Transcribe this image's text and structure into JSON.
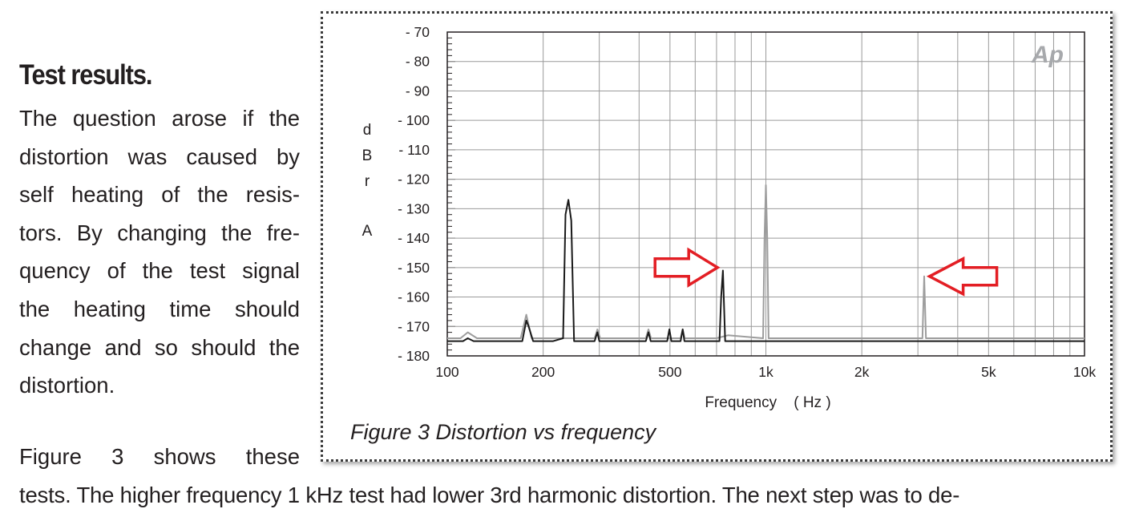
{
  "article": {
    "heading": "Test results.",
    "column_lines": [
      "The question arose if the",
      "distortion was caused by",
      "self heating of the resis-",
      "tors.  By changing the fre-",
      "quency of the test signal",
      "the heating time should",
      "change and so should the",
      "distortion."
    ],
    "figure_ref": "Figure 3 shows these",
    "bottom_line": "tests.  The higher frequency 1 kHz test had lower 3rd harmonic distortion. The next step was to de-"
  },
  "figure": {
    "caption": "Figure 3 Distortion vs frequency",
    "logo_text": "Ap"
  },
  "chart_data": {
    "type": "line",
    "xlabel": "Frequency    ( Hz )",
    "ylabel_letters": [
      "d",
      "B",
      "r",
      "",
      "A"
    ],
    "x_scale": "log",
    "xlim": [
      100,
      10000
    ],
    "ylim": [
      -180,
      -70
    ],
    "x_tick_labels": [
      {
        "value": 100,
        "label": "100"
      },
      {
        "value": 200,
        "label": "200"
      },
      {
        "value": 500,
        "label": "500"
      },
      {
        "value": 1000,
        "label": "1k"
      },
      {
        "value": 2000,
        "label": "2k"
      },
      {
        "value": 5000,
        "label": "5k"
      },
      {
        "value": 10000,
        "label": "10k"
      }
    ],
    "y_tick_labels": [
      {
        "value": -70,
        "label": "- 70"
      },
      {
        "value": -80,
        "label": "- 80"
      },
      {
        "value": -90,
        "label": "- 90"
      },
      {
        "value": -100,
        "label": "- 100"
      },
      {
        "value": -110,
        "label": "- 110"
      },
      {
        "value": -120,
        "label": "- 120"
      },
      {
        "value": -130,
        "label": "- 130"
      },
      {
        "value": -140,
        "label": "- 140"
      },
      {
        "value": -150,
        "label": "- 150"
      },
      {
        "value": -160,
        "label": "- 160"
      },
      {
        "value": -170,
        "label": "- 170"
      },
      {
        "value": -180,
        "label": "- 180"
      }
    ],
    "grid": true,
    "series": [
      {
        "color": "#1a1a1a",
        "x": [
          100,
          112,
          116,
          121,
          150,
          172,
          177,
          180,
          186,
          215,
          231,
          235,
          240,
          245,
          250,
          270,
          290,
          296,
          300,
          420,
          428,
          435,
          490,
          498,
          505,
          540,
          548,
          555,
          700,
          715,
          724,
          733,
          745,
          900,
          1000,
          1100,
          2000,
          3000,
          5000,
          10000
        ],
        "y": [
          -175,
          -175,
          -174,
          -175,
          -175,
          -175,
          -168,
          -170,
          -175,
          -175,
          -174,
          -132,
          -127,
          -134,
          -175,
          -175,
          -175,
          -172,
          -175,
          -175,
          -172,
          -175,
          -175,
          -171,
          -175,
          -175,
          -171,
          -175,
          -175,
          -175,
          -160,
          -151,
          -175,
          -175,
          -175,
          -175,
          -175,
          -175,
          -175,
          -175
        ]
      },
      {
        "color": "#9d9d9d",
        "x": [
          100,
          110,
          116,
          124,
          170,
          177,
          184,
          290,
          296,
          302,
          420,
          428,
          436,
          540,
          548,
          556,
          700,
          760,
          980,
          990,
          1000,
          1010,
          1020,
          2000,
          3100,
          3140,
          3180,
          10000
        ],
        "y": [
          -174,
          -174,
          -172,
          -174,
          -174,
          -166,
          -174,
          -174,
          -171,
          -174,
          -174,
          -171,
          -174,
          -174,
          -171,
          -174,
          -174,
          -173,
          -174,
          -140,
          -122,
          -140,
          -174,
          -174,
          -174,
          -153,
          -174,
          -174
        ]
      }
    ],
    "annotations": [
      {
        "type": "arrow",
        "color": "#e31e24",
        "points_to": {
          "x": 730,
          "y": -150
        },
        "direction": "right"
      },
      {
        "type": "arrow",
        "color": "#e31e24",
        "points_to": {
          "x": 3150,
          "y": -153
        },
        "direction": "left"
      }
    ]
  }
}
